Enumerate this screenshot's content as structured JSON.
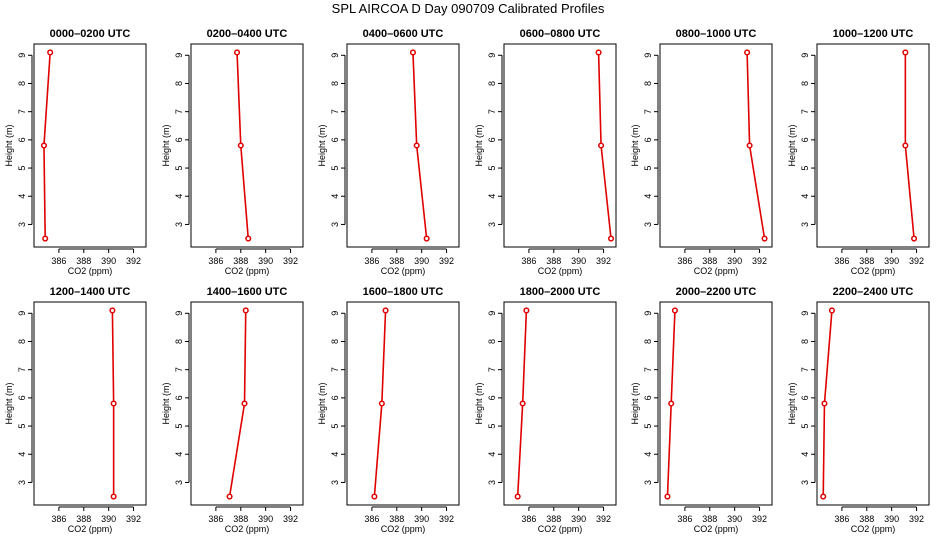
{
  "chart_data": {
    "type": "line",
    "title": "SPL AIRCOA D  Day 090709  Calibrated Profiles",
    "xlabel": "CO2 (ppm)",
    "ylabel": "Height (m)",
    "xlim": [
      384,
      393
    ],
    "ylim": [
      2.2,
      9.4
    ],
    "xticks": [
      386,
      388,
      390,
      392
    ],
    "yticks": [
      3,
      4,
      5,
      6,
      7,
      8,
      9
    ],
    "color": "#e00000",
    "panels": [
      {
        "title": "0000–0200 UTC",
        "heights": [
          2.5,
          5.8,
          9.1
        ],
        "values": [
          384.9,
          384.8,
          385.3
        ]
      },
      {
        "title": "0200–0400 UTC",
        "heights": [
          2.5,
          5.8,
          9.1
        ],
        "values": [
          388.6,
          388.0,
          387.7
        ]
      },
      {
        "title": "0400–0600 UTC",
        "heights": [
          2.5,
          5.8,
          9.1
        ],
        "values": [
          390.4,
          389.6,
          389.3
        ]
      },
      {
        "title": "0600–0800 UTC",
        "heights": [
          2.5,
          5.8,
          9.1
        ],
        "values": [
          392.6,
          391.8,
          391.6
        ]
      },
      {
        "title": "0800–1000 UTC",
        "heights": [
          2.5,
          5.8,
          9.1
        ],
        "values": [
          392.4,
          391.2,
          391.0
        ]
      },
      {
        "title": "1000–1200 UTC",
        "heights": [
          2.5,
          5.8,
          9.1
        ],
        "values": [
          391.8,
          391.1,
          391.1
        ]
      },
      {
        "title": "1200–1400 UTC",
        "heights": [
          2.5,
          5.8,
          9.1
        ],
        "values": [
          390.4,
          390.4,
          390.3
        ]
      },
      {
        "title": "1400–1600 UTC",
        "heights": [
          2.5,
          5.8,
          9.1
        ],
        "values": [
          387.1,
          388.3,
          388.4
        ]
      },
      {
        "title": "1600–1800 UTC",
        "heights": [
          2.5,
          5.8,
          9.1
        ],
        "values": [
          386.2,
          386.8,
          387.1
        ]
      },
      {
        "title": "1800–2000 UTC",
        "heights": [
          2.5,
          5.8,
          9.1
        ],
        "values": [
          385.1,
          385.5,
          385.8
        ]
      },
      {
        "title": "2000–2200 UTC",
        "heights": [
          2.5,
          5.8,
          9.1
        ],
        "values": [
          384.6,
          384.9,
          385.2
        ]
      },
      {
        "title": "2200–2400 UTC",
        "heights": [
          2.5,
          5.8,
          9.1
        ],
        "values": [
          384.5,
          384.6,
          385.2
        ]
      }
    ]
  }
}
